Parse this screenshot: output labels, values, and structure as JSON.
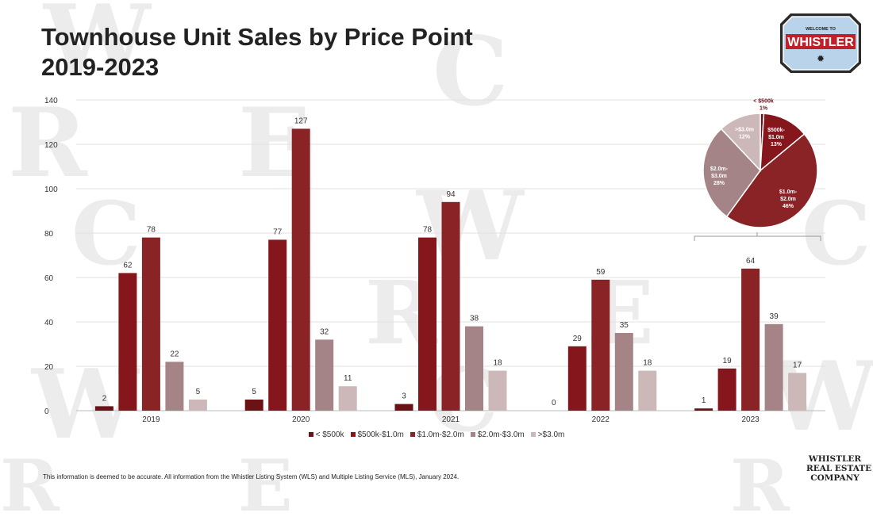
{
  "title_line1": "Townhouse Unit Sales by Price Point",
  "title_line2": "2019-2023",
  "footnote": "This information is deemed to be accurate. All information from the Whistler Listing System (WLS) and Multiple Listing Service (MLS), January 2024.",
  "company_logo": [
    "WHISTLER",
    "REAL ESTATE",
    "COMPANY"
  ],
  "badge_logo": {
    "top": "WELCOME TO",
    "main": "WHISTLER"
  },
  "colors": [
    "#6b1216",
    "#84161c",
    "#8a2326",
    "#a58487",
    "#cdb8b9"
  ],
  "chart_data": [
    {
      "type": "bar",
      "categories": [
        "2019",
        "2020",
        "2021",
        "2022",
        "2023"
      ],
      "series": [
        {
          "name": "< $500k",
          "values": [
            2,
            5,
            3,
            0,
            1
          ]
        },
        {
          "name": "$500k-$1.0m",
          "values": [
            62,
            77,
            78,
            29,
            19
          ]
        },
        {
          "name": "$1.0m-$2.0m",
          "values": [
            78,
            127,
            94,
            59,
            64
          ]
        },
        {
          "name": "$2.0m-$3.0m",
          "values": [
            22,
            32,
            38,
            35,
            39
          ]
        },
        {
          "name": ">$3.0m",
          "values": [
            5,
            11,
            18,
            18,
            17
          ]
        }
      ],
      "ylim": [
        0,
        140
      ],
      "yticks": [
        0,
        20,
        40,
        60,
        80,
        100,
        120,
        140
      ],
      "grid": true,
      "legend": "bottom"
    },
    {
      "type": "pie",
      "labels": [
        "< $500k",
        "$500k-\n$1.0m",
        "$1.0m-\n$2.0m",
        "$2.0m-\n$3.0m",
        ">$3.0m"
      ],
      "percent_labels": [
        "1%",
        "13%",
        "46%",
        "28%",
        "12%"
      ],
      "values": [
        1,
        13,
        46,
        28,
        12
      ]
    }
  ]
}
